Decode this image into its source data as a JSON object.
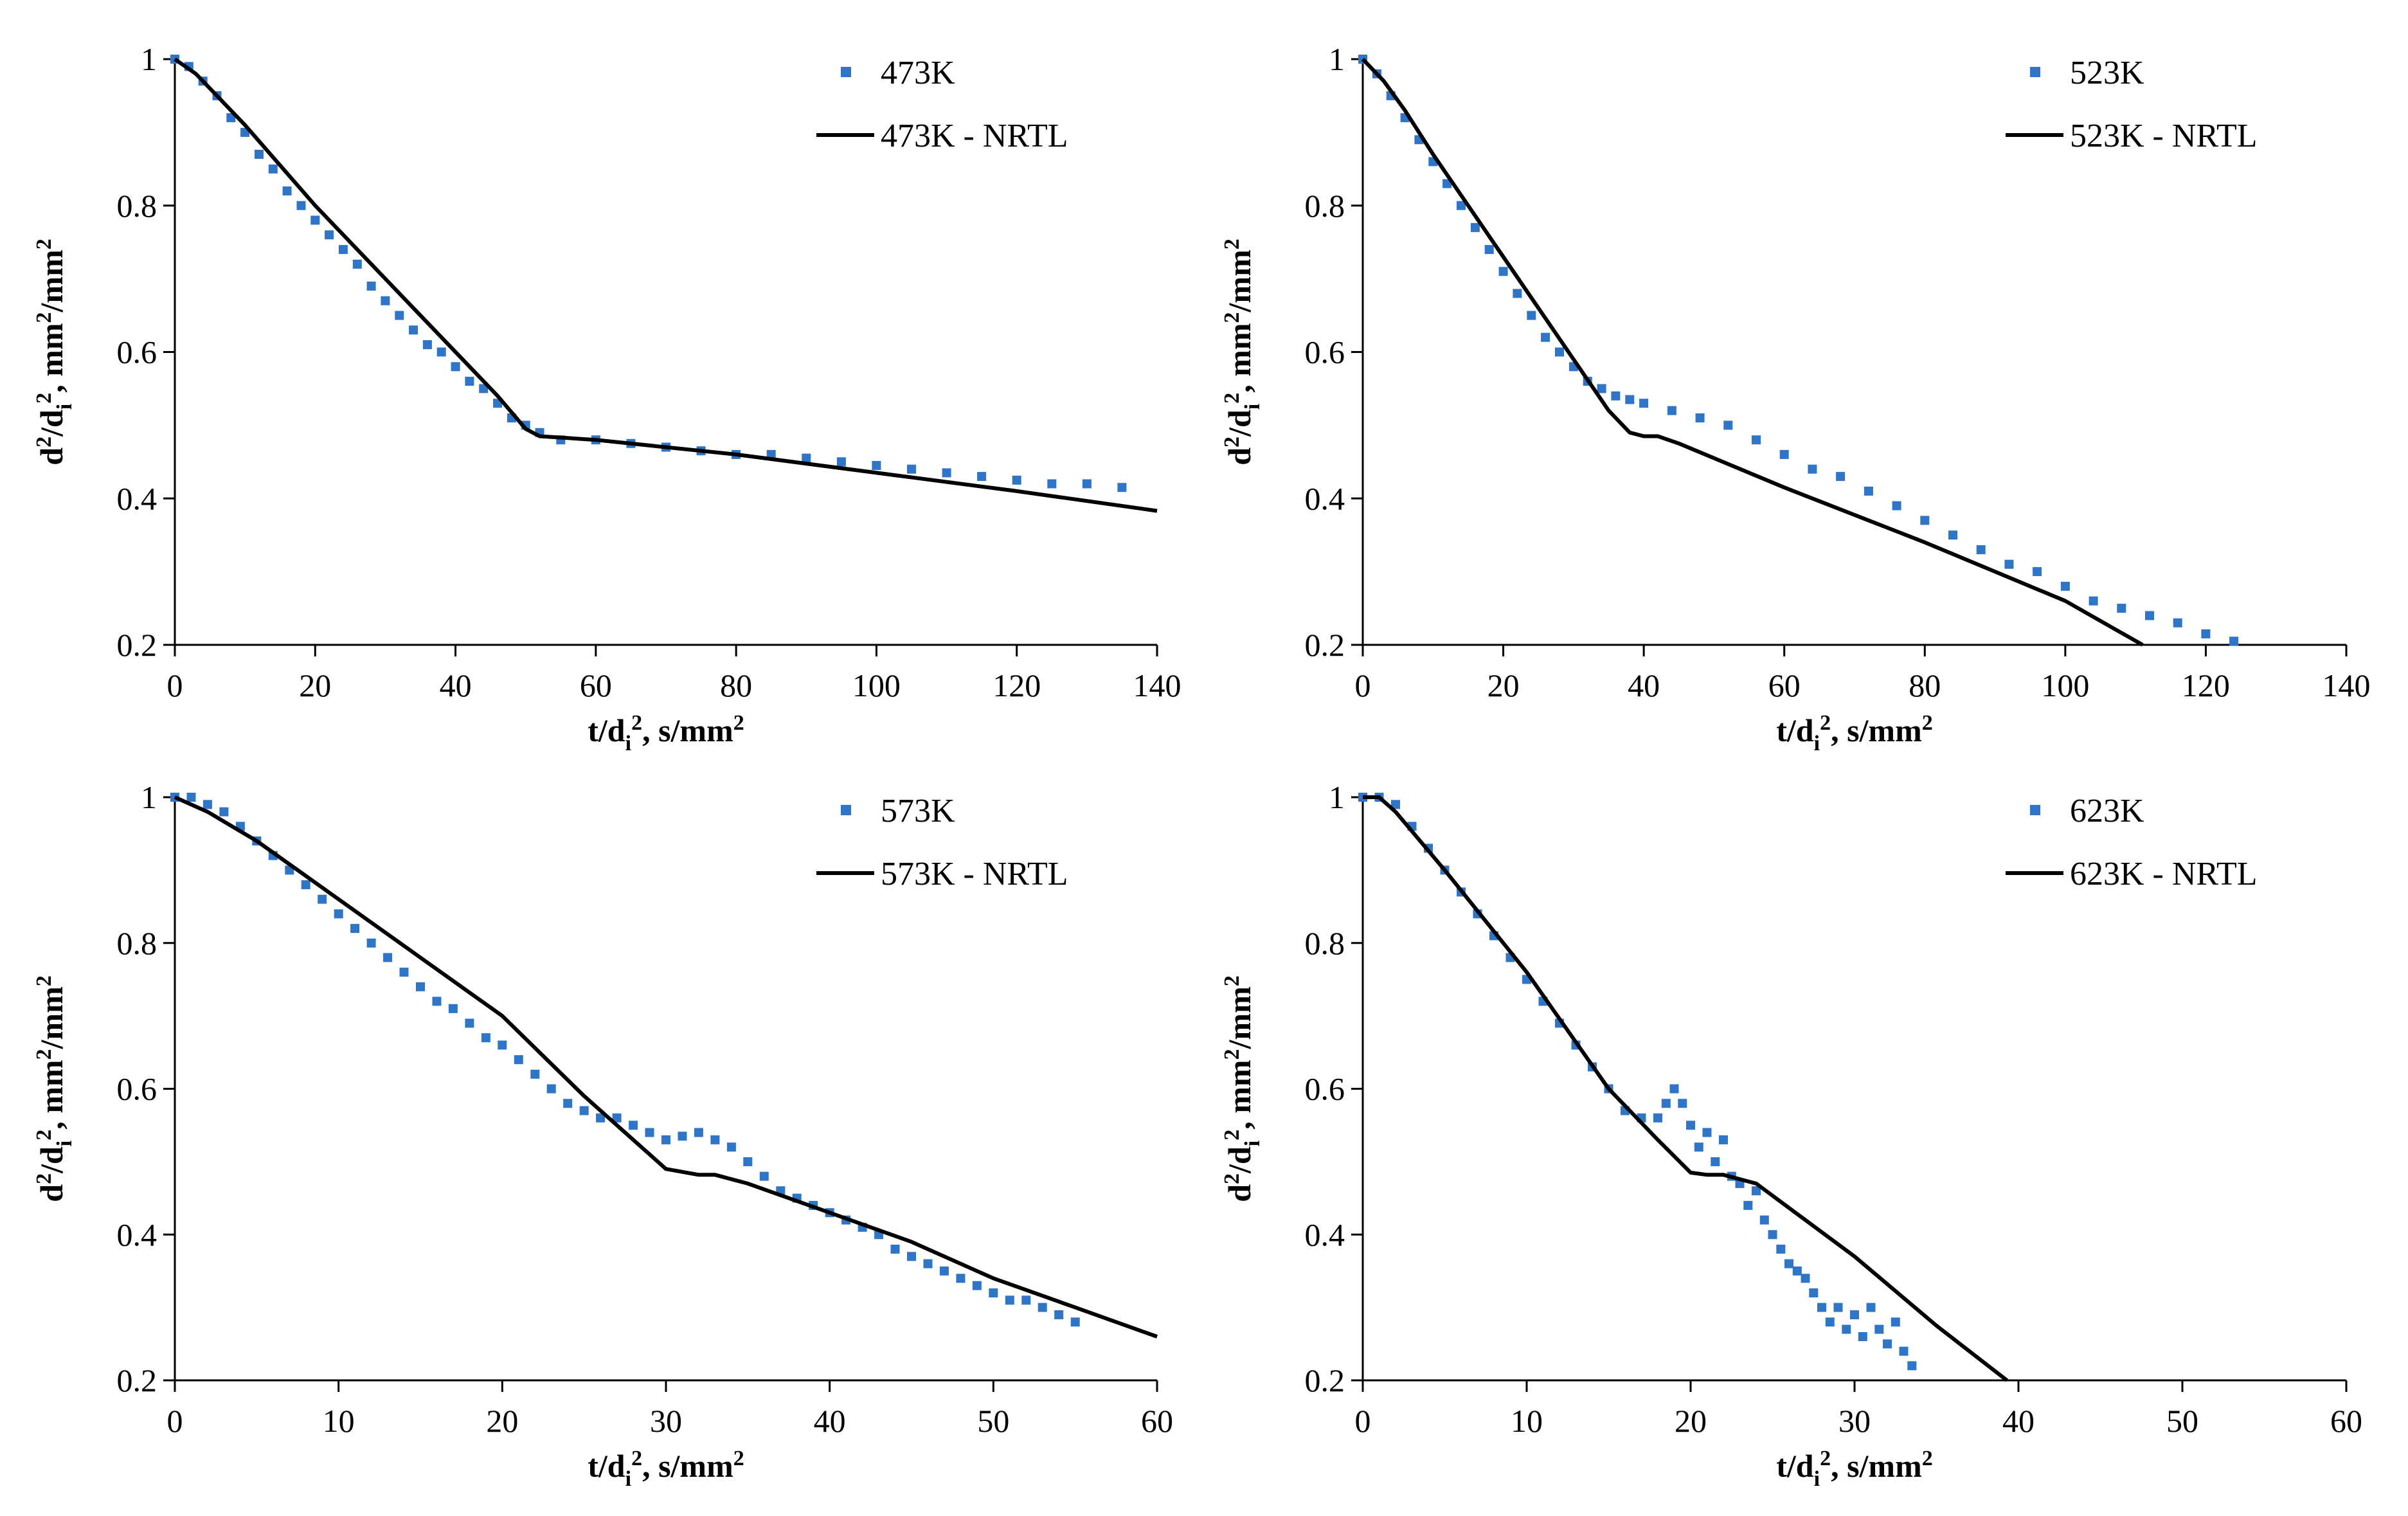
{
  "chart_data": [
    {
      "type": "scatter",
      "title": "",
      "xlabel": "t/d_i^2, s/mm^2",
      "ylabel": "d^2/d_i^2, mm^2/mm^2",
      "xlim": [
        0,
        140
      ],
      "ylim": [
        0.2,
        1.0
      ],
      "xticks": [
        0,
        20,
        40,
        60,
        80,
        100,
        120,
        140
      ],
      "yticks": [
        0.2,
        0.4,
        0.6,
        0.8,
        1.0
      ],
      "xtick_labels": [
        "0",
        "20",
        "40",
        "60",
        "80",
        "100",
        "120",
        "140"
      ],
      "ytick_labels": [
        "0.2",
        "0.4",
        "0.6",
        "0.8",
        "1"
      ],
      "series": [
        {
          "name": "473K",
          "kind": "scatter",
          "color": "#2e75c8",
          "x": [
            0,
            2,
            4,
            6,
            8,
            10,
            12,
            14,
            16,
            18,
            20,
            22,
            24,
            26,
            28,
            30,
            32,
            34,
            36,
            38,
            40,
            42,
            44,
            46,
            48,
            50,
            52,
            55,
            60,
            65,
            70,
            75,
            80,
            85,
            90,
            95,
            100,
            105,
            110,
            115,
            120,
            125,
            130,
            135
          ],
          "y": [
            1.0,
            0.99,
            0.97,
            0.95,
            0.92,
            0.9,
            0.87,
            0.85,
            0.82,
            0.8,
            0.78,
            0.76,
            0.74,
            0.72,
            0.69,
            0.67,
            0.65,
            0.63,
            0.61,
            0.6,
            0.58,
            0.56,
            0.55,
            0.53,
            0.51,
            0.5,
            0.49,
            0.48,
            0.48,
            0.475,
            0.47,
            0.465,
            0.46,
            0.46,
            0.455,
            0.45,
            0.445,
            0.44,
            0.435,
            0.43,
            0.425,
            0.42,
            0.42,
            0.415
          ]
        },
        {
          "name": "473K - NRTL",
          "kind": "line",
          "color": "#000000",
          "x": [
            0,
            3,
            6,
            10,
            20,
            30,
            40,
            46,
            50,
            52,
            60,
            80,
            100,
            120,
            140
          ],
          "y": [
            1.0,
            0.98,
            0.95,
            0.91,
            0.8,
            0.7,
            0.6,
            0.54,
            0.495,
            0.485,
            0.48,
            0.46,
            0.435,
            0.41,
            0.383
          ]
        }
      ]
    },
    {
      "type": "scatter",
      "title": "",
      "xlabel": "t/d_i^2, s/mm^2",
      "ylabel": "d^2/d_i^2, mm^2/mm^2",
      "xlim": [
        0,
        140
      ],
      "ylim": [
        0.2,
        1.0
      ],
      "xticks": [
        0,
        20,
        40,
        60,
        80,
        100,
        120,
        140
      ],
      "yticks": [
        0.2,
        0.4,
        0.6,
        0.8,
        1.0
      ],
      "xtick_labels": [
        "0",
        "20",
        "40",
        "60",
        "80",
        "100",
        "120",
        "140"
      ],
      "ytick_labels": [
        "0.2",
        "0.4",
        "0.6",
        "0.8",
        "1"
      ],
      "series": [
        {
          "name": "523K",
          "kind": "scatter",
          "color": "#2e75c8",
          "x": [
            0,
            2,
            4,
            6,
            8,
            10,
            12,
            14,
            16,
            18,
            20,
            22,
            24,
            26,
            28,
            30,
            32,
            34,
            36,
            38,
            40,
            44,
            48,
            52,
            56,
            60,
            64,
            68,
            72,
            76,
            80,
            84,
            88,
            92,
            96,
            100,
            104,
            108,
            112,
            116,
            120,
            124
          ],
          "y": [
            1.0,
            0.98,
            0.95,
            0.92,
            0.89,
            0.86,
            0.83,
            0.8,
            0.77,
            0.74,
            0.71,
            0.68,
            0.65,
            0.62,
            0.6,
            0.58,
            0.56,
            0.55,
            0.54,
            0.535,
            0.53,
            0.52,
            0.51,
            0.5,
            0.48,
            0.46,
            0.44,
            0.43,
            0.41,
            0.39,
            0.37,
            0.35,
            0.33,
            0.31,
            0.3,
            0.28,
            0.26,
            0.25,
            0.24,
            0.23,
            0.215,
            0.205
          ]
        },
        {
          "name": "523K - NRTL",
          "kind": "line",
          "color": "#000000",
          "x": [
            0,
            3,
            6,
            10,
            20,
            30,
            35,
            38,
            40,
            42,
            45,
            60,
            80,
            100,
            111
          ],
          "y": [
            1.0,
            0.97,
            0.93,
            0.87,
            0.73,
            0.59,
            0.52,
            0.49,
            0.485,
            0.485,
            0.475,
            0.415,
            0.34,
            0.26,
            0.2
          ]
        }
      ]
    },
    {
      "type": "scatter",
      "title": "",
      "xlabel": "t/d_i^2, s/mm^2",
      "ylabel": "d^2/d_i^2, mm^2/mm^2",
      "xlim": [
        0,
        60
      ],
      "ylim": [
        0.2,
        1.0
      ],
      "xticks": [
        0,
        10,
        20,
        30,
        40,
        50,
        60
      ],
      "yticks": [
        0.2,
        0.4,
        0.6,
        0.8,
        1.0
      ],
      "xtick_labels": [
        "0",
        "10",
        "20",
        "30",
        "40",
        "50",
        "60"
      ],
      "ytick_labels": [
        "0.2",
        "0.4",
        "0.6",
        "0.8",
        "1"
      ],
      "series": [
        {
          "name": "573K",
          "kind": "scatter",
          "color": "#2e75c8",
          "x": [
            0,
            1,
            2,
            3,
            4,
            5,
            6,
            7,
            8,
            9,
            10,
            11,
            12,
            13,
            14,
            15,
            16,
            17,
            18,
            19,
            20,
            21,
            22,
            23,
            24,
            25,
            26,
            27,
            28,
            29,
            30,
            31,
            32,
            33,
            34,
            35,
            36,
            37,
            38,
            39,
            40,
            41,
            42,
            43,
            44,
            45,
            46,
            47,
            48,
            49,
            50,
            51,
            52,
            53,
            54,
            55
          ],
          "y": [
            1.0,
            1.0,
            0.99,
            0.98,
            0.96,
            0.94,
            0.92,
            0.9,
            0.88,
            0.86,
            0.84,
            0.82,
            0.8,
            0.78,
            0.76,
            0.74,
            0.72,
            0.71,
            0.69,
            0.67,
            0.66,
            0.64,
            0.62,
            0.6,
            0.58,
            0.57,
            0.56,
            0.56,
            0.55,
            0.54,
            0.53,
            0.535,
            0.54,
            0.53,
            0.52,
            0.5,
            0.48,
            0.46,
            0.45,
            0.44,
            0.43,
            0.42,
            0.41,
            0.4,
            0.38,
            0.37,
            0.36,
            0.35,
            0.34,
            0.33,
            0.32,
            0.31,
            0.31,
            0.3,
            0.29,
            0.28
          ]
        },
        {
          "name": "573K - NRTL",
          "kind": "line",
          "color": "#000000",
          "x": [
            0,
            2,
            5,
            10,
            15,
            20,
            25,
            28,
            30,
            32,
            33,
            35,
            40,
            45,
            50,
            55,
            60
          ],
          "y": [
            1.0,
            0.98,
            0.94,
            0.86,
            0.78,
            0.7,
            0.59,
            0.53,
            0.49,
            0.482,
            0.482,
            0.47,
            0.43,
            0.39,
            0.34,
            0.3,
            0.26
          ]
        }
      ]
    },
    {
      "type": "scatter",
      "title": "",
      "xlabel": "t/d_i^2, s/mm^2",
      "ylabel": "d^2/d_i^2, mm^2/mm^2",
      "xlim": [
        0,
        60
      ],
      "ylim": [
        0.2,
        1.0
      ],
      "xticks": [
        0,
        10,
        20,
        30,
        40,
        50,
        60
      ],
      "yticks": [
        0.2,
        0.4,
        0.6,
        0.8,
        1.0
      ],
      "xtick_labels": [
        "0",
        "10",
        "20",
        "30",
        "40",
        "50",
        "60"
      ],
      "ytick_labels": [
        "0.2",
        "0.4",
        "0.6",
        "0.8",
        "1"
      ],
      "series": [
        {
          "name": "623K",
          "kind": "scatter",
          "color": "#2e75c8",
          "x": [
            0,
            1,
            2,
            3,
            4,
            5,
            6,
            7,
            8,
            9,
            10,
            11,
            12,
            13,
            14,
            15,
            16,
            17,
            18,
            18.5,
            19,
            19.5,
            20,
            20.5,
            21,
            21.5,
            22,
            22.5,
            23,
            23.5,
            24,
            24.5,
            25,
            25.5,
            26,
            26.5,
            27,
            27.5,
            28,
            28.5,
            29,
            29.5,
            30,
            30.5,
            31,
            31.5,
            32,
            32.5,
            33,
            33.5
          ],
          "y": [
            1.0,
            1.0,
            0.99,
            0.96,
            0.93,
            0.9,
            0.87,
            0.84,
            0.81,
            0.78,
            0.75,
            0.72,
            0.69,
            0.66,
            0.63,
            0.6,
            0.57,
            0.56,
            0.56,
            0.58,
            0.6,
            0.58,
            0.55,
            0.52,
            0.54,
            0.5,
            0.53,
            0.48,
            0.47,
            0.44,
            0.46,
            0.42,
            0.4,
            0.38,
            0.36,
            0.35,
            0.34,
            0.32,
            0.3,
            0.28,
            0.3,
            0.27,
            0.29,
            0.26,
            0.3,
            0.27,
            0.25,
            0.28,
            0.24,
            0.22
          ]
        },
        {
          "name": "623K - NRTL",
          "kind": "line",
          "color": "#000000",
          "x": [
            0,
            1,
            2,
            5,
            10,
            15,
            18,
            20,
            21,
            22,
            24,
            30,
            35,
            39.3
          ],
          "y": [
            1.0,
            1.0,
            0.98,
            0.9,
            0.76,
            0.6,
            0.53,
            0.485,
            0.482,
            0.482,
            0.47,
            0.37,
            0.275,
            0.2
          ]
        }
      ]
    }
  ]
}
